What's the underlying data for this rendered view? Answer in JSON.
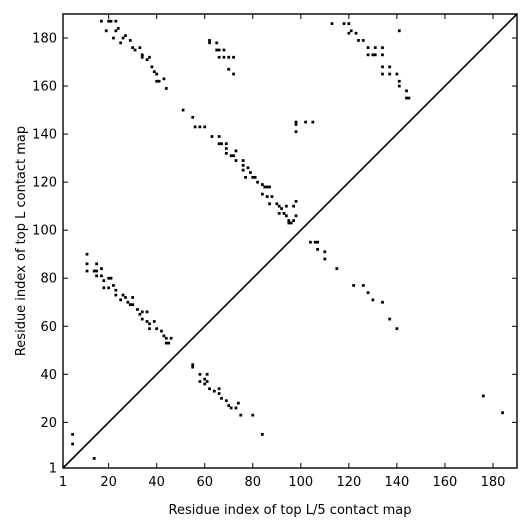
{
  "chart_data": {
    "type": "scatter",
    "xlabel": "Residue index of top L/5 contact map",
    "ylabel": "Residue index of top L contact map",
    "xlim": [
      1,
      190
    ],
    "ylim": [
      1,
      190
    ],
    "xticks": [
      1,
      20,
      40,
      60,
      80,
      100,
      120,
      140,
      160,
      180
    ],
    "yticks": [
      1,
      20,
      40,
      60,
      80,
      100,
      120,
      140,
      160,
      180
    ],
    "diagonal": true,
    "grid": false,
    "marker_color": "#000000",
    "upper_points": [
      [
        17,
        187
      ],
      [
        20,
        187
      ],
      [
        21,
        187
      ],
      [
        23,
        187
      ],
      [
        19,
        183
      ],
      [
        23,
        183
      ],
      [
        24,
        184
      ],
      [
        22,
        180
      ],
      [
        26,
        180
      ],
      [
        27,
        181
      ],
      [
        25,
        178
      ],
      [
        29,
        179
      ],
      [
        30,
        176
      ],
      [
        31,
        175
      ],
      [
        33,
        176
      ],
      [
        34,
        173
      ],
      [
        34,
        172
      ],
      [
        36,
        171
      ],
      [
        37,
        172
      ],
      [
        38,
        168
      ],
      [
        39,
        166
      ],
      [
        40,
        165
      ],
      [
        40,
        162
      ],
      [
        41,
        162
      ],
      [
        43,
        163
      ],
      [
        44,
        159
      ],
      [
        62,
        179
      ],
      [
        62,
        178
      ],
      [
        65,
        178
      ],
      [
        65,
        175
      ],
      [
        66,
        175
      ],
      [
        68,
        175
      ],
      [
        66,
        172
      ],
      [
        68,
        172
      ],
      [
        70,
        172
      ],
      [
        72,
        172
      ],
      [
        70,
        167
      ],
      [
        72,
        165
      ],
      [
        51,
        150
      ],
      [
        55,
        147
      ],
      [
        56,
        143
      ],
      [
        58,
        143
      ],
      [
        60,
        143
      ],
      [
        63,
        139
      ],
      [
        66,
        139
      ],
      [
        66,
        136
      ],
      [
        67,
        136
      ],
      [
        69,
        136
      ],
      [
        69,
        134
      ],
      [
        69,
        132
      ],
      [
        71,
        131
      ],
      [
        72,
        131
      ],
      [
        73,
        133
      ],
      [
        73,
        129
      ],
      [
        76,
        129
      ],
      [
        76,
        127
      ],
      [
        76,
        125
      ],
      [
        78,
        126
      ],
      [
        79,
        124
      ],
      [
        77,
        122
      ],
      [
        80,
        122
      ],
      [
        81,
        122
      ],
      [
        82,
        120
      ],
      [
        84,
        119
      ],
      [
        85,
        118
      ],
      [
        86,
        118
      ],
      [
        87,
        118
      ],
      [
        84,
        115
      ],
      [
        86,
        114
      ],
      [
        88,
        114
      ],
      [
        87,
        111
      ],
      [
        90,
        111
      ],
      [
        91,
        110
      ],
      [
        94,
        110
      ],
      [
        92,
        109
      ],
      [
        91,
        107
      ],
      [
        93,
        107
      ],
      [
        94,
        106
      ],
      [
        95,
        104
      ],
      [
        95,
        103
      ],
      [
        96,
        103
      ],
      [
        97,
        104
      ],
      [
        98,
        106
      ],
      [
        97,
        110
      ],
      [
        98,
        112
      ],
      [
        98,
        145
      ],
      [
        98,
        144
      ],
      [
        98,
        141
      ],
      [
        102,
        145
      ],
      [
        105,
        145
      ],
      [
        104,
        95
      ],
      [
        106,
        95
      ],
      [
        107,
        95
      ],
      [
        107,
        92
      ],
      [
        110,
        91
      ],
      [
        110,
        88
      ],
      [
        115,
        84
      ],
      [
        113,
        186
      ],
      [
        118,
        186
      ],
      [
        120,
        186
      ],
      [
        120,
        182
      ],
      [
        121,
        183
      ],
      [
        123,
        182
      ],
      [
        124,
        179
      ],
      [
        126,
        179
      ],
      [
        128,
        176
      ],
      [
        128,
        173
      ],
      [
        130,
        173
      ],
      [
        131,
        173
      ],
      [
        131,
        176
      ],
      [
        134,
        176
      ],
      [
        134,
        173
      ],
      [
        134,
        168
      ],
      [
        134,
        165
      ],
      [
        137,
        165
      ],
      [
        137,
        168
      ],
      [
        140,
        165
      ],
      [
        141,
        162
      ],
      [
        141,
        160
      ],
      [
        144,
        158
      ],
      [
        144,
        155
      ],
      [
        145,
        155
      ],
      [
        141,
        183
      ],
      [
        122,
        77
      ],
      [
        126,
        77
      ],
      [
        128,
        74
      ],
      [
        130,
        71
      ],
      [
        134,
        70
      ],
      [
        137,
        63
      ],
      [
        140,
        59
      ]
    ],
    "lower_points": [
      [
        5,
        15
      ],
      [
        5,
        11
      ],
      [
        14,
        5
      ],
      [
        11,
        90
      ],
      [
        11,
        86
      ],
      [
        11,
        83
      ],
      [
        14,
        83
      ],
      [
        15,
        83
      ],
      [
        15,
        86
      ],
      [
        15,
        81
      ],
      [
        17,
        81
      ],
      [
        17,
        84
      ],
      [
        18,
        79
      ],
      [
        18,
        76
      ],
      [
        20,
        80
      ],
      [
        21,
        80
      ],
      [
        20,
        76
      ],
      [
        22,
        77
      ],
      [
        23,
        75
      ],
      [
        23,
        73
      ],
      [
        25,
        71
      ],
      [
        26,
        73
      ],
      [
        27,
        72
      ],
      [
        28,
        70
      ],
      [
        29,
        69
      ],
      [
        30,
        69
      ],
      [
        30,
        72
      ],
      [
        32,
        67
      ],
      [
        33,
        65
      ],
      [
        34,
        63
      ],
      [
        34,
        66
      ],
      [
        36,
        66
      ],
      [
        36,
        62
      ],
      [
        37,
        61
      ],
      [
        37,
        59
      ],
      [
        39,
        62
      ],
      [
        40,
        59
      ],
      [
        42,
        58
      ],
      [
        43,
        56
      ],
      [
        44,
        55
      ],
      [
        44,
        53
      ],
      [
        45,
        53
      ],
      [
        46,
        55
      ],
      [
        55,
        44
      ],
      [
        55,
        43
      ],
      [
        58,
        40
      ],
      [
        58,
        37
      ],
      [
        60,
        38
      ],
      [
        60,
        36
      ],
      [
        61,
        40
      ],
      [
        61,
        37
      ],
      [
        62,
        34
      ],
      [
        64,
        33
      ],
      [
        66,
        34
      ],
      [
        66,
        32
      ],
      [
        67,
        30
      ],
      [
        69,
        29
      ],
      [
        70,
        27
      ],
      [
        71,
        26
      ],
      [
        73,
        26
      ],
      [
        74,
        28
      ],
      [
        75,
        23
      ],
      [
        80,
        23
      ],
      [
        84,
        15
      ],
      [
        176,
        31
      ],
      [
        184,
        24
      ]
    ]
  }
}
